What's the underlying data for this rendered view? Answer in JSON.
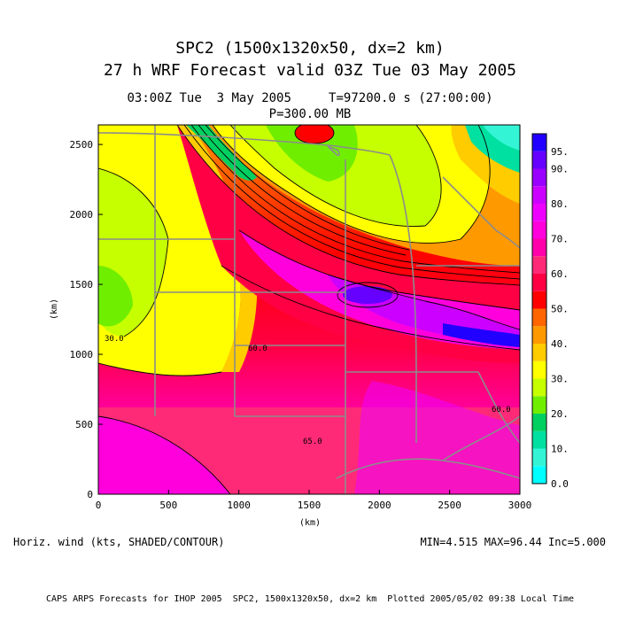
{
  "header": {
    "title_line1": "SPC2 (1500x1320x50, dx=2 km)",
    "title_line2": "27 h WRF Forecast valid 03Z Tue 03 May 2005",
    "time_line": "03:00Z Tue  3 May 2005     T=97200.0 s (27:00:00)",
    "level_line": "P=300.00 MB"
  },
  "chart_data": {
    "type": "heatmap",
    "x_ticks": [
      "0",
      "500",
      "1000",
      "1500",
      "2000",
      "2500",
      "3000"
    ],
    "y_ticks": [
      "0",
      "500",
      "1000",
      "1500",
      "2000",
      "2500"
    ],
    "xlabel": "(km)",
    "ylabel": "(km)",
    "xlim": [
      0,
      3000
    ],
    "ylim": [
      0,
      2640
    ],
    "colorbar": {
      "labels": [
        "0.0",
        "10.",
        "20.",
        "30.",
        "40.",
        "50.",
        "60.",
        "70.",
        "80.",
        "90.",
        "95."
      ],
      "bins": [
        {
          "from": 0,
          "to": 5,
          "color": "#00ffff"
        },
        {
          "from": 5,
          "to": 10,
          "color": "#33f5d6"
        },
        {
          "from": 10,
          "to": 15,
          "color": "#00e0a0"
        },
        {
          "from": 15,
          "to": 20,
          "color": "#00d060"
        },
        {
          "from": 20,
          "to": 25,
          "color": "#70ee00"
        },
        {
          "from": 25,
          "to": 30,
          "color": "#c6ff00"
        },
        {
          "from": 30,
          "to": 35,
          "color": "#ffff00"
        },
        {
          "from": 35,
          "to": 40,
          "color": "#ffcc00"
        },
        {
          "from": 40,
          "to": 45,
          "color": "#ff9900"
        },
        {
          "from": 45,
          "to": 50,
          "color": "#ff6600"
        },
        {
          "from": 50,
          "to": 55,
          "color": "#ff0000"
        },
        {
          "from": 55,
          "to": 60,
          "color": "#ff0044"
        },
        {
          "from": 60,
          "to": 65,
          "color": "#ff2a77"
        },
        {
          "from": 65,
          "to": 70,
          "color": "#ff00aa"
        },
        {
          "from": 70,
          "to": 75,
          "color": "#ff00dd"
        },
        {
          "from": 75,
          "to": 80,
          "color": "#ee00ff"
        },
        {
          "from": 80,
          "to": 85,
          "color": "#cc00ff"
        },
        {
          "from": 85,
          "to": 90,
          "color": "#9900ff"
        },
        {
          "from": 90,
          "to": 95,
          "color": "#6600ff"
        },
        {
          "from": 95,
          "to": 100,
          "color": "#2200ff"
        }
      ]
    },
    "contour_labels": [
      "30.0",
      "60.0",
      "60.0",
      "65.0"
    ],
    "field": "Horiz. wind (kts, SHADED/CONTOUR)",
    "min": "MIN=4.515",
    "max": "MAX=96.44",
    "inc": "Inc=5.000"
  },
  "footer": "CAPS ARPS Forecasts for IHOP 2005  SPC2, 1500x1320x50, dx=2 km  Plotted 2005/05/02 09:38 Local Time"
}
